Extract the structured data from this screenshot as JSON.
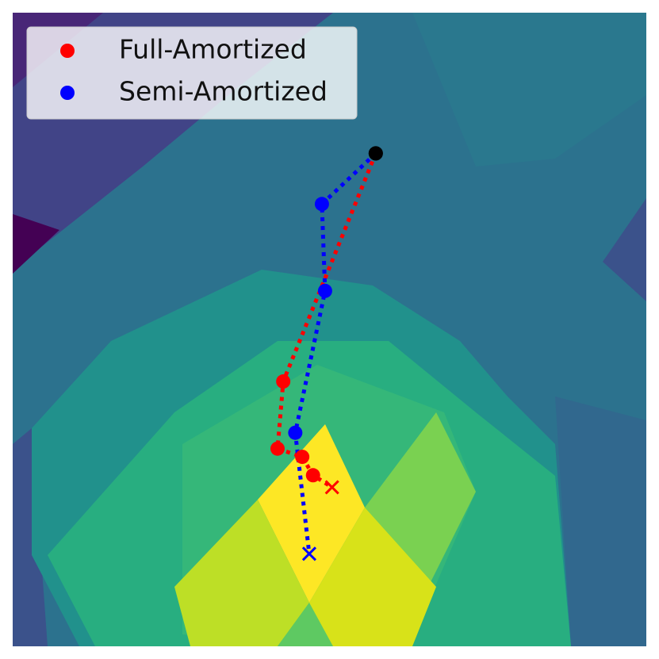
{
  "chart_data": {
    "type": "scatter",
    "xlim": [
      0,
      100
    ],
    "ylim": [
      0,
      100
    ],
    "legend": "upper left",
    "series": [
      {
        "name": "Full-Amortized",
        "color": "red",
        "x": [
          57.3,
          42.7,
          41.8,
          45.7,
          47.4,
          50.4
        ],
        "values": [
          77.8,
          41.8,
          31.2,
          29.9,
          27.0,
          25.1
        ]
      },
      {
        "name": "Semi-Amortized",
        "color": "blue",
        "x": [
          57.3,
          48.8,
          49.3,
          44.6,
          46.8
        ],
        "values": [
          77.8,
          69.8,
          56.1,
          33.7,
          14.6
        ]
      }
    ]
  }
}
